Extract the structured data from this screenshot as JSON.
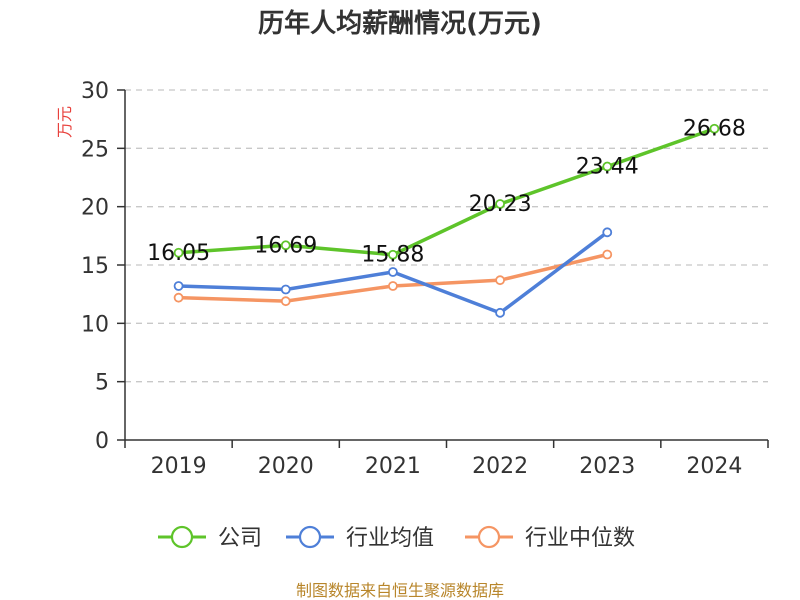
{
  "chart_data": {
    "type": "line",
    "title": "历年人均薪酬情况(万元)",
    "ylabel": "万元",
    "xlabel": "",
    "categories": [
      "2019",
      "2020",
      "2021",
      "2022",
      "2023",
      "2024"
    ],
    "ylim": [
      0,
      30
    ],
    "yticks": [
      0,
      5,
      10,
      15,
      20,
      25,
      30
    ],
    "grid": "horizontal-dashed",
    "legend_position": "bottom",
    "series": [
      {
        "name": "公司",
        "color": "#5ec42a",
        "values": [
          16.05,
          16.69,
          15.88,
          20.23,
          23.44,
          26.68
        ],
        "labels": [
          "16.05",
          "16.69",
          "15.88",
          "20.23",
          "23.44",
          "26.68"
        ]
      },
      {
        "name": "行业均值",
        "color": "#4e7fd8",
        "values": [
          13.2,
          12.9,
          14.4,
          10.9,
          17.8,
          null
        ]
      },
      {
        "name": "行业中位数",
        "color": "#f59563",
        "values": [
          12.2,
          11.9,
          13.2,
          13.7,
          15.9,
          null
        ]
      }
    ]
  },
  "footer": {
    "source": "制图数据来自恒生聚源数据库"
  }
}
